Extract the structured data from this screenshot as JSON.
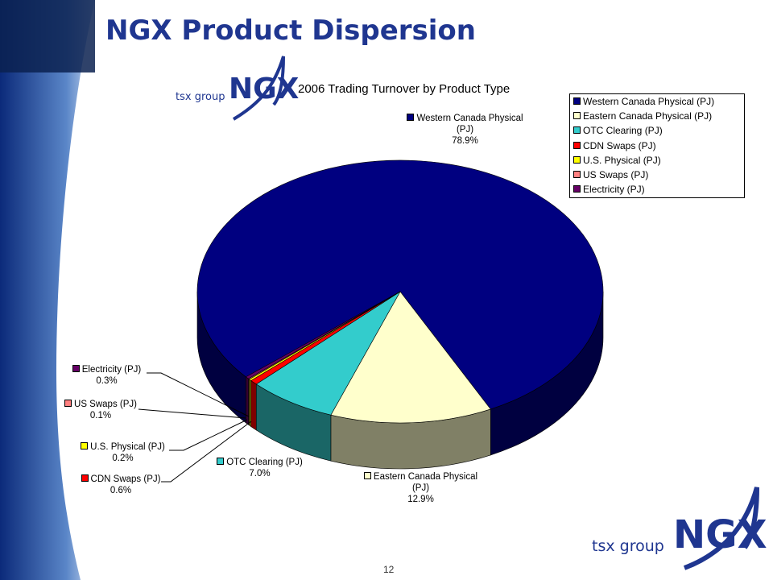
{
  "slide": {
    "title": "NGX Product Dispersion",
    "page_number": "12"
  },
  "logo": {
    "brand": "NGX",
    "group": "tsx group"
  },
  "chart_data": {
    "type": "pie",
    "title": "2006 Trading Turnover by Product Type",
    "categories": [
      "Western Canada Physical (PJ)",
      "Eastern Canada Physical (PJ)",
      "OTC Clearing (PJ)",
      "CDN Swaps (PJ)",
      "U.S. Physical (PJ)",
      "US Swaps (PJ)",
      "Electricity (PJ)"
    ],
    "values": [
      78.9,
      12.9,
      7.0,
      0.6,
      0.2,
      0.1,
      0.3
    ],
    "value_labels": [
      "78.9%",
      "12.9%",
      "7.0%",
      "0.6%",
      "0.2%",
      "0.1%",
      "0.3%"
    ],
    "colors": [
      "#000080",
      "#FFFFCC",
      "#33CCCC",
      "#FF0000",
      "#FFFF00",
      "#FF8080",
      "#660066"
    ],
    "legend": "upper right"
  }
}
